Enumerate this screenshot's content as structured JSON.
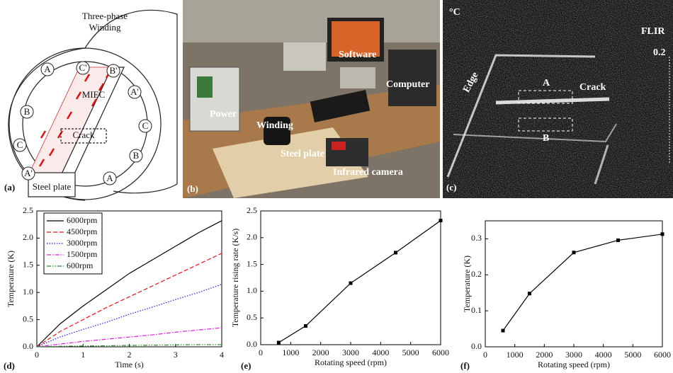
{
  "panels": {
    "a": {
      "label": "(a)",
      "title_lines": [
        "Three-phase",
        "Winding"
      ],
      "miec": "MIEC",
      "crack": "Crack",
      "plate": "Steel plate",
      "phase_labels": [
        "A",
        "C'",
        "B'",
        "B",
        "A'",
        "C",
        "C",
        "A'",
        "B",
        "A"
      ]
    },
    "b": {
      "label": "(b)",
      "software": "Software",
      "computer": "Computer",
      "power": "Power",
      "winding": "Winding",
      "plate": "Steel plate",
      "camera": "Infrared camera"
    },
    "c": {
      "label": "(c)",
      "unit": "°C",
      "brand": "FLIR",
      "scale": "0.2",
      "edge": "Edge",
      "a": "A",
      "crack": "Crack",
      "b": "B"
    }
  },
  "chart_data": [
    {
      "type": "line",
      "panel_label": "(d)",
      "xlabel": "Time (s)",
      "ylabel": "Temperature (K)",
      "x": [
        0,
        0.5,
        1,
        1.5,
        2,
        2.5,
        3,
        3.5,
        4
      ],
      "xlim": [
        0,
        4
      ],
      "xticks": [
        0,
        1,
        2,
        3,
        4
      ],
      "ylim": [
        0,
        2.5
      ],
      "yticks": [
        {
          "value": 0,
          "label": "0.0"
        },
        0.5,
        {
          "value": 1,
          "label": "1.0"
        },
        1.5,
        {
          "value": 2,
          "label": "2.0"
        },
        2.5
      ],
      "legend": "upper left",
      "series": [
        {
          "name": "6000rpm",
          "color": "#000000",
          "style": "solid",
          "values": [
            0,
            0.42,
            0.75,
            1.05,
            1.35,
            1.6,
            1.85,
            2.1,
            2.32
          ]
        },
        {
          "name": "4500rpm",
          "color": "#e8141b",
          "style": "dashed",
          "values": [
            0,
            0.28,
            0.5,
            0.72,
            0.92,
            1.12,
            1.32,
            1.52,
            1.72
          ]
        },
        {
          "name": "3000rpm",
          "color": "#1a1ae6",
          "style": "dotted",
          "values": [
            0,
            0.18,
            0.32,
            0.45,
            0.6,
            0.73,
            0.87,
            1.0,
            1.15
          ]
        },
        {
          "name": "1500rpm",
          "color": "#e61ae6",
          "style": "dashdot",
          "values": [
            0,
            0.05,
            0.1,
            0.14,
            0.18,
            0.22,
            0.27,
            0.31,
            0.35
          ]
        },
        {
          "name": "600rpm",
          "color": "#2a8a2a",
          "style": "dashdotdot",
          "values": [
            0,
            0.01,
            0.015,
            0.02,
            0.025,
            0.03,
            0.035,
            0.04,
            0.04
          ]
        }
      ]
    },
    {
      "type": "line",
      "panel_label": "(e)",
      "xlabel": "Rotating speed (rpm)",
      "ylabel": "Temperature rising rate (K/s)",
      "x": [
        600,
        1500,
        3000,
        4500,
        6000
      ],
      "values": [
        0.04,
        0.35,
        1.15,
        1.72,
        2.32
      ],
      "color": "#000000",
      "markers": true,
      "xlim": [
        0,
        6000
      ],
      "xticks": [
        0,
        1000,
        2000,
        3000,
        4000,
        5000,
        6000
      ],
      "ylim": [
        0,
        2.5
      ],
      "yticks": [
        {
          "value": 0,
          "label": "0.0"
        },
        0.5,
        {
          "value": 1,
          "label": "1.0"
        },
        1.5,
        {
          "value": 2,
          "label": "2.0"
        },
        2.5
      ]
    },
    {
      "type": "line",
      "panel_label": "(f)",
      "xlabel": "Rotating speed (rpm)",
      "ylabel": "Temperature (K)",
      "x": [
        600,
        1500,
        3000,
        4500,
        6000
      ],
      "values": [
        0.045,
        0.148,
        0.262,
        0.296,
        0.313
      ],
      "color": "#000000",
      "markers": true,
      "xlim": [
        0,
        6000
      ],
      "xticks": [
        0,
        1000,
        2000,
        3000,
        4000,
        5000,
        6000
      ],
      "ylim": [
        0,
        0.35
      ],
      "yticks": [
        {
          "value": 0,
          "label": "0.0"
        },
        0.1,
        0.2,
        0.3
      ]
    }
  ]
}
